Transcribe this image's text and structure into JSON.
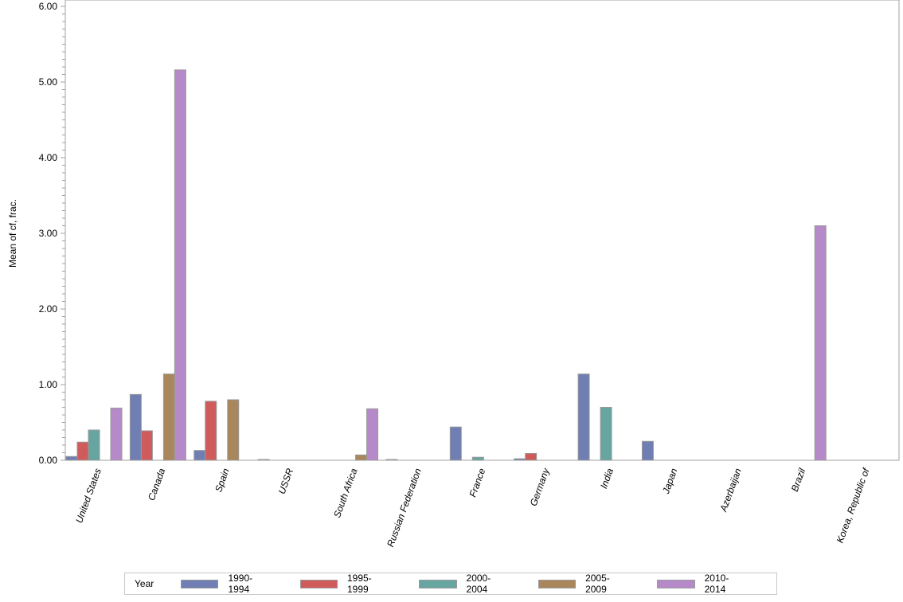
{
  "chart_data": {
    "type": "bar",
    "title": "",
    "xlabel": "",
    "ylabel": "Mean of cf, frac.",
    "ylim": [
      0,
      6
    ],
    "yticks": [
      "0.00",
      "1.00",
      "2.00",
      "3.00",
      "4.00",
      "5.00",
      "6.00"
    ],
    "grid": false,
    "legend_position": "bottom",
    "legend_title": "Year",
    "categories": [
      "United States",
      "Canada",
      "Spain",
      "USSR",
      "South Africa",
      "Russian Federation",
      "France",
      "Germany",
      "India",
      "Japan",
      "Azerbaijan",
      "Brazil",
      "Korea, Republic of"
    ],
    "series": [
      {
        "name": "1990-1994",
        "color": "#6f7eb3",
        "values": [
          0.05,
          0.87,
          0.13,
          0.01,
          null,
          0.01,
          0.44,
          0.02,
          1.14,
          0.25,
          null,
          null,
          null
        ]
      },
      {
        "name": "1995-1999",
        "color": "#d05b5b",
        "values": [
          0.24,
          0.39,
          0.78,
          null,
          null,
          null,
          null,
          0.09,
          null,
          null,
          null,
          null,
          null
        ]
      },
      {
        "name": "2000-2004",
        "color": "#66a5a0",
        "values": [
          0.4,
          null,
          null,
          null,
          null,
          null,
          0.04,
          null,
          0.7,
          null,
          null,
          null,
          null
        ]
      },
      {
        "name": "2005-2009",
        "color": "#a9865b",
        "values": [
          null,
          1.14,
          0.8,
          null,
          0.07,
          null,
          null,
          null,
          null,
          null,
          null,
          null,
          null
        ]
      },
      {
        "name": "2010-2014",
        "color": "#b689c9",
        "values": [
          0.69,
          5.16,
          null,
          null,
          0.68,
          null,
          null,
          null,
          null,
          null,
          null,
          3.1,
          null
        ]
      }
    ]
  },
  "legend": {
    "title": "Year",
    "items": [
      {
        "label": "1990-1994",
        "color": "#6f7eb3"
      },
      {
        "label": "1995-1999",
        "color": "#d05b5b"
      },
      {
        "label": "2000-2004",
        "color": "#66a5a0"
      },
      {
        "label": "2005-2009",
        "color": "#a9865b"
      },
      {
        "label": "2010-2014",
        "color": "#b689c9"
      }
    ]
  }
}
